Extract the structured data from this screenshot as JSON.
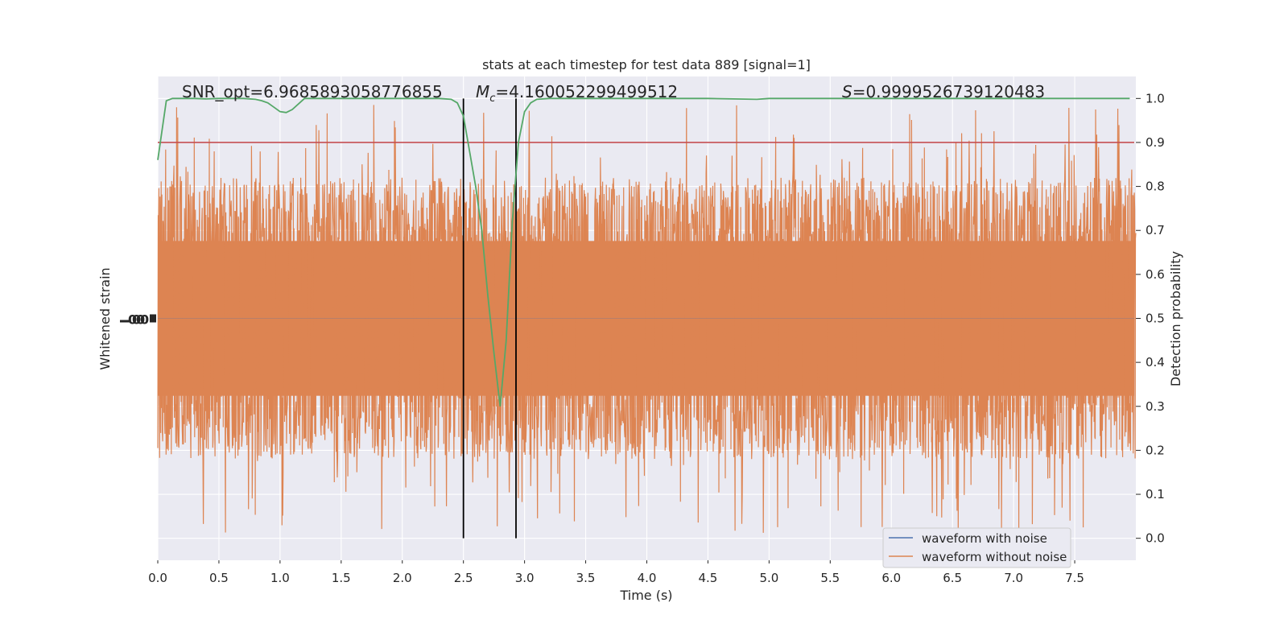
{
  "chart_data": {
    "type": "line",
    "title": "stats at each timestep for test data 889 [signal=1]",
    "annotations": {
      "snr": "SNR_opt=6.9685893058776855",
      "mc_symbol": "M",
      "mc_sub": "c",
      "mc_value": "=4.160052299499512",
      "s_symbol": "S",
      "s_value": "=0.9999526739120483"
    },
    "xlabel": "Time (s)",
    "ylabel_left": "Whitened strain",
    "ylabel_right": "Detection probability",
    "xlim": [
      0.0,
      8.0
    ],
    "ylim_right": [
      -0.05,
      1.05
    ],
    "x_ticks": [
      "0.0",
      "0.5",
      "1.0",
      "1.5",
      "2.0",
      "2.5",
      "3.0",
      "3.5",
      "4.0",
      "4.5",
      "5.0",
      "5.5",
      "6.0",
      "6.5",
      "7.0",
      "7.5"
    ],
    "y_right_ticks": [
      "0.0",
      "0.1",
      "0.2",
      "0.3",
      "0.4",
      "0.5",
      "0.6",
      "0.7",
      "0.8",
      "0.9",
      "1.0"
    ],
    "grid": true,
    "legend_position": "lower-right",
    "legend": [
      "waveform with noise",
      "waveform without noise"
    ],
    "threshold": 0.9,
    "markers_x": [
      2.5,
      2.93
    ],
    "detection_probability": {
      "x": [
        0.0,
        0.07,
        0.12,
        0.2,
        0.3,
        0.4,
        0.5,
        0.6,
        0.7,
        0.8,
        0.85,
        0.9,
        0.95,
        1.0,
        1.05,
        1.1,
        1.2,
        1.3,
        1.4,
        1.5,
        1.7,
        1.9,
        2.1,
        2.3,
        2.4,
        2.45,
        2.5,
        2.55,
        2.6,
        2.65,
        2.7,
        2.75,
        2.8,
        2.85,
        2.9,
        2.95,
        3.0,
        3.05,
        3.1,
        3.2,
        3.5,
        4.0,
        4.5,
        4.9,
        5.0,
        5.5,
        6.0,
        6.5,
        7.0,
        7.5,
        7.95
      ],
      "y": [
        0.86,
        0.995,
        1.0,
        1.0,
        1.0,
        0.999,
        1.0,
        1.0,
        1.0,
        0.998,
        0.995,
        0.99,
        0.98,
        0.97,
        0.968,
        0.975,
        1.0,
        1.0,
        1.0,
        1.0,
        1.0,
        1.0,
        1.0,
        1.0,
        0.998,
        0.99,
        0.96,
        0.88,
        0.8,
        0.7,
        0.55,
        0.42,
        0.3,
        0.45,
        0.72,
        0.9,
        0.97,
        0.99,
        0.998,
        1.0,
        1.0,
        1.0,
        1.0,
        0.998,
        1.0,
        1.0,
        1.0,
        1.0,
        1.0,
        1.0,
        1.0
      ]
    },
    "strain_envelope": {
      "note_units": "detection-probability axis",
      "center": 0.5,
      "typical_half_range": 0.32,
      "spike_max": 0.99,
      "spike_min": 0.0
    },
    "colors": {
      "background": "#eaeaf2",
      "grid": "#ffffff",
      "with_noise": "#4c72b0",
      "without_noise": "#dd8452",
      "probability": "#55a868",
      "threshold": "#c44e52",
      "markers": "#000000"
    }
  }
}
